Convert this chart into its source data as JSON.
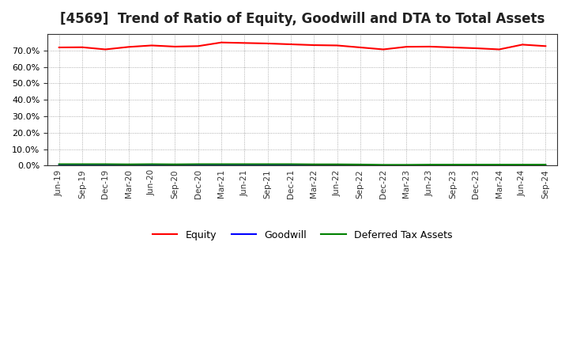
{
  "title": "[4569]  Trend of Ratio of Equity, Goodwill and DTA to Total Assets",
  "x_labels": [
    "Jun-19",
    "Sep-19",
    "Dec-19",
    "Mar-20",
    "Jun-20",
    "Sep-20",
    "Dec-20",
    "Mar-21",
    "Jun-21",
    "Sep-21",
    "Dec-21",
    "Mar-22",
    "Jun-22",
    "Sep-22",
    "Dec-22",
    "Mar-23",
    "Jun-23",
    "Sep-23",
    "Dec-23",
    "Mar-24",
    "Jun-24",
    "Sep-24"
  ],
  "equity": [
    0.718,
    0.719,
    0.706,
    0.721,
    0.73,
    0.723,
    0.726,
    0.748,
    0.745,
    0.742,
    0.737,
    0.732,
    0.73,
    0.718,
    0.706,
    0.722,
    0.723,
    0.718,
    0.713,
    0.706,
    0.735,
    0.726
  ],
  "goodwill": [
    0.005,
    0.005,
    0.005,
    0.005,
    0.005,
    0.004,
    0.004,
    0.004,
    0.004,
    0.004,
    0.003,
    0.003,
    0.003,
    0.002,
    0.002,
    0.002,
    0.002,
    0.002,
    0.002,
    0.001,
    0.001,
    0.001
  ],
  "dta": [
    0.009,
    0.009,
    0.009,
    0.008,
    0.009,
    0.008,
    0.009,
    0.009,
    0.009,
    0.009,
    0.009,
    0.008,
    0.008,
    0.007,
    0.005,
    0.005,
    0.006,
    0.006,
    0.006,
    0.006,
    0.006,
    0.006
  ],
  "equity_color": "#FF0000",
  "goodwill_color": "#0000FF",
  "dta_color": "#008000",
  "background_color": "#FFFFFF",
  "plot_bg_color": "#FFFFFF",
  "grid_color": "#999999",
  "ylim": [
    0.0,
    0.8
  ],
  "yticks": [
    0.0,
    0.1,
    0.2,
    0.3,
    0.4,
    0.5,
    0.6,
    0.7
  ],
  "title_fontsize": 12,
  "legend_labels": [
    "Equity",
    "Goodwill",
    "Deferred Tax Assets"
  ]
}
